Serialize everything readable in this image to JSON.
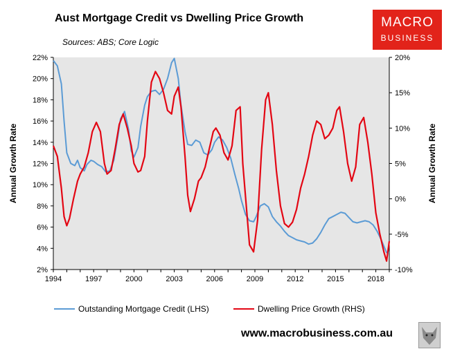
{
  "branding": {
    "logo_line1": "MACRO",
    "logo_line2": "BUSINESS",
    "url": "www.macrobusiness.com.au"
  },
  "chart_data": {
    "type": "line",
    "title": "Aust Mortgage Credit vs Dwelling Price Growth",
    "subtitle": "Sources: ABS; Core Logic",
    "ylabel_left": "Annual Growth Rate",
    "ylabel_right": "Annual Growth Rate",
    "xlim": [
      1994,
      2019
    ],
    "ylim_left": [
      2,
      22
    ],
    "ylim_right": [
      -10,
      20
    ],
    "x_ticks": [
      "1994",
      "1997",
      "2000",
      "2003",
      "2006",
      "2009",
      "2012",
      "2015",
      "2018"
    ],
    "y_left_ticks": [
      "2%",
      "4%",
      "6%",
      "8%",
      "10%",
      "12%",
      "14%",
      "16%",
      "18%",
      "20%",
      "22%"
    ],
    "y_right_ticks": [
      "-10%",
      "-5%",
      "0%",
      "5%",
      "10%",
      "15%",
      "20%"
    ],
    "grid": false,
    "legend_position": "bottom",
    "series": [
      {
        "name": "Outstanding Mortgage Credit (LHS)",
        "axis": "left",
        "color": "#5b9bd5",
        "x": [
          1994.0,
          1994.3,
          1994.6,
          1994.8,
          1995.0,
          1995.3,
          1995.6,
          1995.8,
          1996.0,
          1996.3,
          1996.5,
          1996.8,
          1997.0,
          1997.3,
          1997.6,
          1997.9,
          1998.2,
          1998.5,
          1998.8,
          1999.0,
          1999.3,
          1999.6,
          1999.8,
          2000.0,
          2000.3,
          2000.5,
          2000.8,
          2001.0,
          2001.3,
          2001.6,
          2001.9,
          2002.2,
          2002.5,
          2002.8,
          2003.0,
          2003.3,
          2003.5,
          2003.8,
          2004.0,
          2004.3,
          2004.6,
          2004.9,
          2005.2,
          2005.5,
          2005.8,
          2006.0,
          2006.3,
          2006.6,
          2006.9,
          2007.2,
          2007.5,
          2007.8,
          2008.0,
          2008.3,
          2008.6,
          2008.9,
          2009.1,
          2009.4,
          2009.7,
          2010.0,
          2010.3,
          2010.6,
          2010.9,
          2011.2,
          2011.5,
          2011.8,
          2012.1,
          2012.4,
          2012.7,
          2013.0,
          2013.3,
          2013.6,
          2013.9,
          2014.2,
          2014.5,
          2014.8,
          2015.1,
          2015.4,
          2015.7,
          2016.0,
          2016.3,
          2016.6,
          2016.9,
          2017.2,
          2017.5,
          2017.8,
          2018.1,
          2018.4,
          2018.6,
          2018.8,
          2019.0
        ],
        "y": [
          21.7,
          21.2,
          19.5,
          16.0,
          13.0,
          12.0,
          11.8,
          12.3,
          11.6,
          11.3,
          11.9,
          12.3,
          12.2,
          11.9,
          11.7,
          11.2,
          11.3,
          12.3,
          14.5,
          16.2,
          16.9,
          15.2,
          13.2,
          12.6,
          13.5,
          15.5,
          17.5,
          18.3,
          18.8,
          18.9,
          18.5,
          19.0,
          20.0,
          21.5,
          21.9,
          20.0,
          17.5,
          15.0,
          13.8,
          13.7,
          14.2,
          14.0,
          13.0,
          12.8,
          13.3,
          14.0,
          14.5,
          14.2,
          13.5,
          12.5,
          11.0,
          9.6,
          8.5,
          7.2,
          6.6,
          6.5,
          7.0,
          8.0,
          8.2,
          7.9,
          7.0,
          6.5,
          6.1,
          5.6,
          5.2,
          5.0,
          4.8,
          4.7,
          4.6,
          4.4,
          4.5,
          4.9,
          5.5,
          6.2,
          6.8,
          7.0,
          7.2,
          7.4,
          7.3,
          6.9,
          6.5,
          6.4,
          6.5,
          6.6,
          6.5,
          6.2,
          5.6,
          4.8,
          4.2,
          3.6,
          3.6
        ]
      },
      {
        "name": "Dwelling Price Growth (RHS)",
        "axis": "right",
        "color": "#e30613",
        "x": [
          1994.0,
          1994.3,
          1994.6,
          1994.8,
          1995.0,
          1995.2,
          1995.5,
          1995.8,
          1996.0,
          1996.3,
          1996.6,
          1996.9,
          1997.2,
          1997.5,
          1997.8,
          1998.0,
          1998.3,
          1998.6,
          1998.9,
          1999.2,
          1999.5,
          1999.8,
          2000.0,
          2000.3,
          2000.5,
          2000.8,
          2001.0,
          2001.3,
          2001.6,
          2001.9,
          2002.2,
          2002.5,
          2002.8,
          2003.0,
          2003.3,
          2003.5,
          2003.8,
          2004.0,
          2004.2,
          2004.5,
          2004.8,
          2005.0,
          2005.3,
          2005.6,
          2005.9,
          2006.1,
          2006.4,
          2006.7,
          2007.0,
          2007.3,
          2007.6,
          2007.9,
          2008.1,
          2008.4,
          2008.6,
          2008.9,
          2009.2,
          2009.5,
          2009.8,
          2010.0,
          2010.3,
          2010.6,
          2010.9,
          2011.2,
          2011.5,
          2011.8,
          2012.1,
          2012.4,
          2012.7,
          2013.0,
          2013.3,
          2013.6,
          2013.9,
          2014.2,
          2014.5,
          2014.8,
          2015.1,
          2015.3,
          2015.6,
          2015.9,
          2016.2,
          2016.5,
          2016.8,
          2017.1,
          2017.4,
          2017.7,
          2018.0,
          2018.3,
          2018.6,
          2018.8,
          2019.0
        ],
        "y": [
          7.5,
          6.0,
          1.5,
          -2.5,
          -3.8,
          -2.8,
          0.0,
          2.5,
          3.5,
          4.5,
          6.5,
          9.5,
          10.8,
          9.5,
          5.0,
          3.5,
          4.0,
          7.0,
          10.5,
          12.0,
          10.0,
          7.5,
          5.0,
          3.8,
          4.0,
          6.0,
          11.0,
          16.5,
          18.0,
          17.0,
          15.0,
          12.5,
          12.0,
          14.5,
          15.8,
          13.0,
          6.0,
          0.5,
          -1.8,
          0.0,
          2.5,
          3.0,
          4.5,
          7.0,
          9.5,
          10.0,
          9.0,
          6.5,
          5.5,
          7.5,
          12.5,
          13.0,
          5.0,
          -2.0,
          -6.5,
          -7.5,
          -3.0,
          7.0,
          14.0,
          15.0,
          10.5,
          4.0,
          -1.0,
          -3.5,
          -4.0,
          -3.3,
          -1.5,
          1.5,
          3.5,
          6.0,
          9.0,
          11.0,
          10.5,
          8.5,
          9.0,
          10.0,
          12.5,
          13.0,
          9.5,
          5.0,
          2.5,
          4.5,
          10.5,
          11.5,
          8.0,
          3.5,
          -2.0,
          -5.0,
          -7.5,
          -8.8,
          -6.0
        ]
      }
    ]
  }
}
